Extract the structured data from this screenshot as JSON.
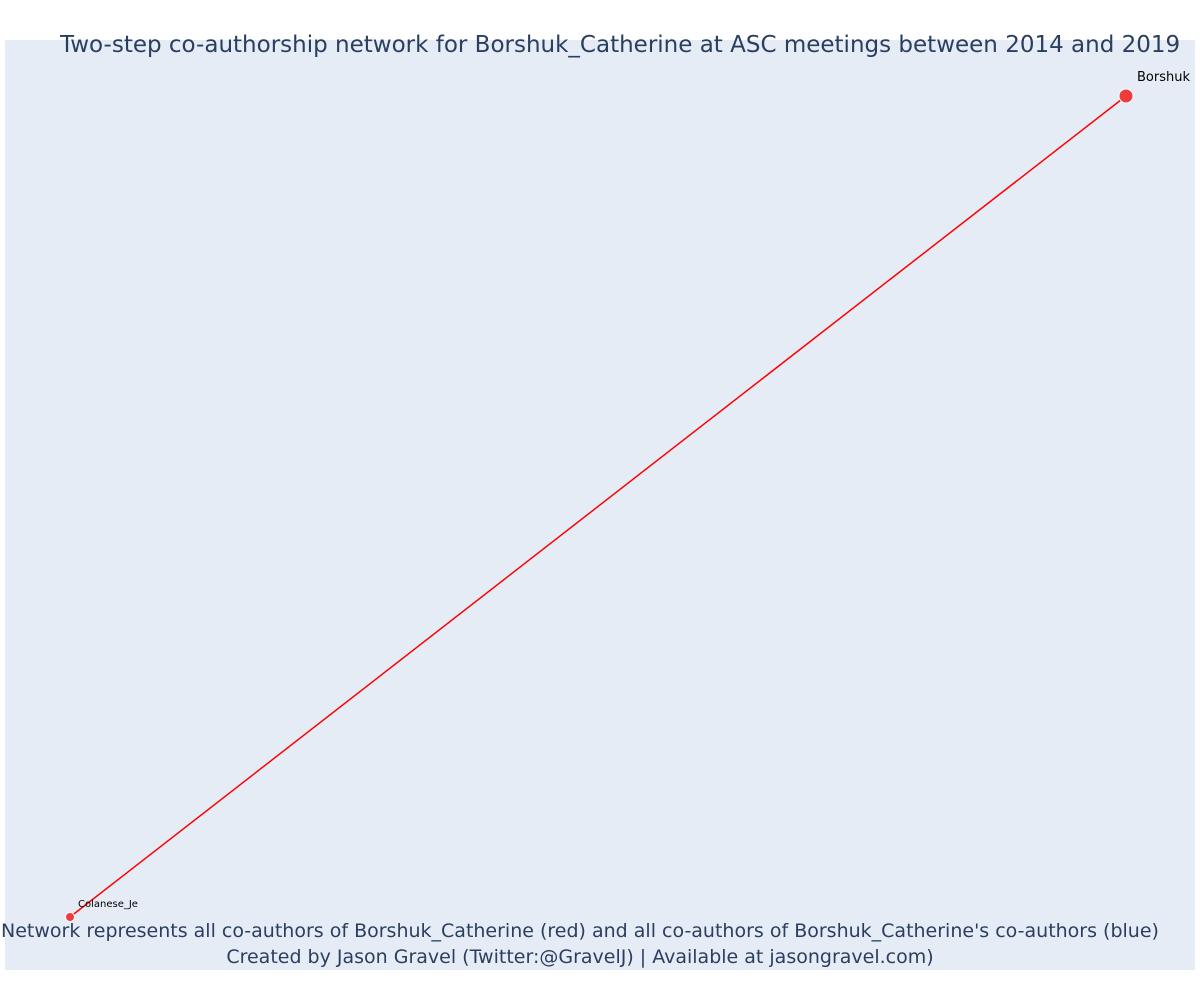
{
  "header": {
    "title": "Two-step co-authorship network for Borshuk_Catherine at ASC meetings between 2014 and 2019"
  },
  "caption": {
    "line1": "Network represents all co-authors of Borshuk_Catherine (red) and all co-authors of Borshuk_Catherine's co-authors (blue)",
    "line2": "Created by Jason Gravel (Twitter:@GravelJ) | Available at jasongravel.com)"
  },
  "colors": {
    "plot_background": "#e5ecf6",
    "node_red": "#ef3b3b",
    "edge_red": "#ff0000",
    "text": "#2a3f5f"
  },
  "network": {
    "nodes": [
      {
        "id": "borshuk",
        "label": "Borshuk",
        "group": "co-author",
        "color": "#ef3b3b",
        "size": "large"
      },
      {
        "id": "colanese",
        "label": "Colanese_Je",
        "group": "co-author",
        "color": "#ef3b3b",
        "size": "small"
      }
    ],
    "edges": [
      {
        "source": "borshuk",
        "target": "colanese",
        "color": "#ff0000"
      }
    ]
  }
}
